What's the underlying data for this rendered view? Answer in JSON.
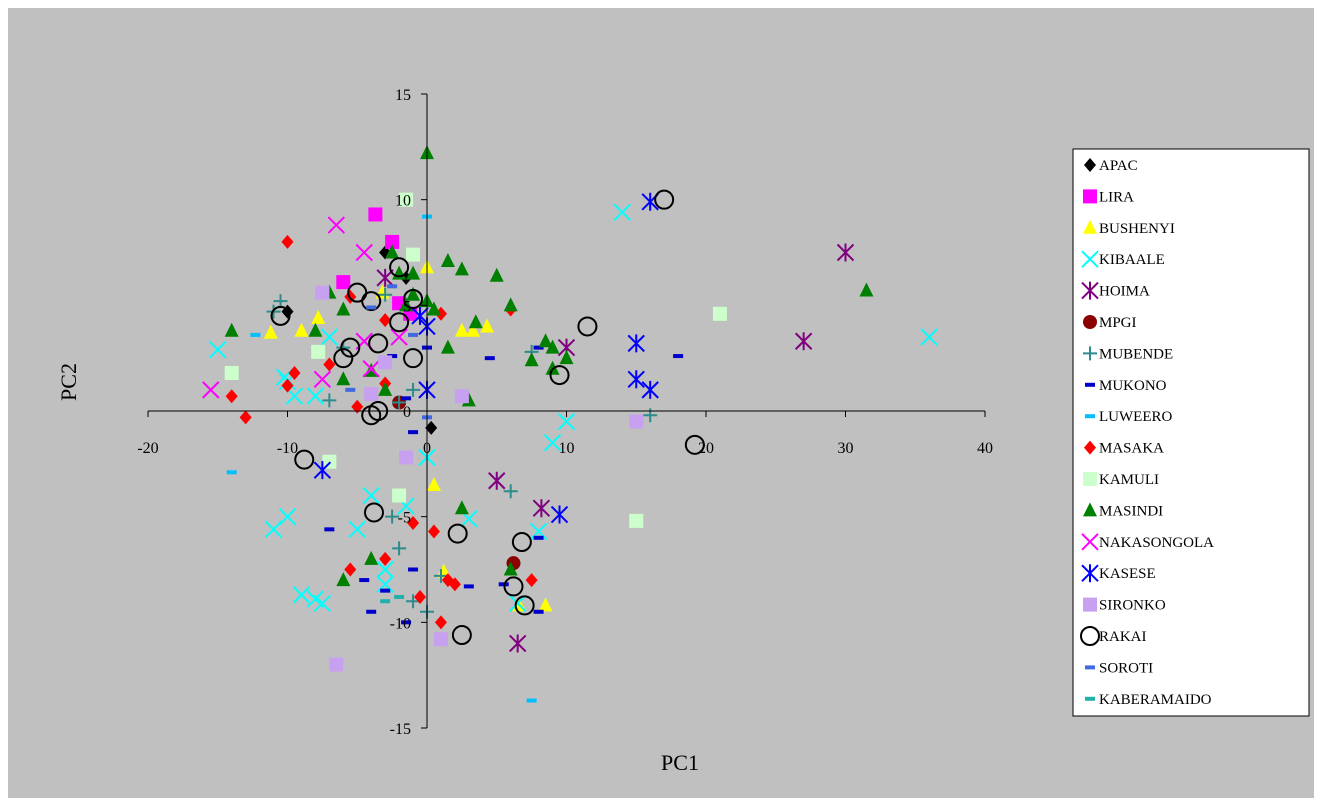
{
  "chart_data": {
    "type": "scatter",
    "title": "",
    "xlabel": "PC1",
    "ylabel": "PC2",
    "xlim": [
      -20,
      40
    ],
    "ylim": [
      -15,
      15
    ],
    "x_ticks": [
      -20,
      -10,
      0,
      10,
      20,
      30,
      40
    ],
    "y_ticks": [
      -15,
      -10,
      -5,
      0,
      5,
      10,
      15
    ],
    "grid": false,
    "legend_position": "right",
    "plot_background": "#c0c0c0",
    "series": [
      {
        "name": "APAC",
        "marker": "diamond",
        "color": "#000000",
        "points": [
          [
            -10,
            4.7
          ],
          [
            -3,
            7.5
          ],
          [
            -1.5,
            6.3
          ],
          [
            0.3,
            -0.8
          ]
        ]
      },
      {
        "name": "LIRA",
        "marker": "square",
        "color": "#ff00ff",
        "points": [
          [
            -3.7,
            9.3
          ],
          [
            -2.5,
            8
          ],
          [
            -6,
            6.1
          ],
          [
            -2,
            5.1
          ],
          [
            -1.2,
            4.6
          ]
        ]
      },
      {
        "name": "BUSHENYI",
        "marker": "triangle",
        "color": "#ffff00",
        "points": [
          [
            -11.2,
            3.7
          ],
          [
            -9,
            3.8
          ],
          [
            -7.8,
            4.4
          ],
          [
            0,
            6.8
          ],
          [
            2.5,
            3.8
          ],
          [
            3.3,
            3.8
          ],
          [
            4.3,
            4
          ],
          [
            -3.2,
            5.6
          ],
          [
            1.2,
            -7.6
          ],
          [
            6.6,
            -9.2
          ],
          [
            8.5,
            -9.2
          ],
          [
            0.5,
            -3.5
          ]
        ]
      },
      {
        "name": "KIBAALE",
        "marker": "x",
        "color": "#00ffff",
        "points": [
          [
            -15,
            2.9
          ],
          [
            -10.2,
            1.6
          ],
          [
            -9.5,
            0.7
          ],
          [
            -10,
            1.4
          ],
          [
            -8,
            0.7
          ],
          [
            -7,
            3.5
          ],
          [
            -11,
            -5.6
          ],
          [
            -10,
            -5
          ],
          [
            -9,
            -8.7
          ],
          [
            -8,
            -8.9
          ],
          [
            -7.5,
            -9.1
          ],
          [
            -4,
            -4
          ],
          [
            -5,
            -5.6
          ],
          [
            -3,
            -7.5
          ],
          [
            -3,
            -8.2
          ],
          [
            -1.5,
            -4.5
          ],
          [
            0,
            -2.2
          ],
          [
            3,
            -5.1
          ],
          [
            6.5,
            -9.1
          ],
          [
            8,
            -5.7
          ],
          [
            9,
            -1.5
          ],
          [
            10,
            -0.5
          ],
          [
            14,
            9.4
          ],
          [
            36,
            3.5
          ]
        ]
      },
      {
        "name": "HOIMA",
        "marker": "star",
        "color": "#800080",
        "points": [
          [
            -3,
            6.3
          ],
          [
            10,
            3
          ],
          [
            27,
            3.3
          ],
          [
            30,
            7.5
          ],
          [
            5,
            -3.3
          ],
          [
            8.2,
            -4.6
          ],
          [
            6.5,
            -11
          ]
        ]
      },
      {
        "name": "MPGI",
        "marker": "circle",
        "color": "#8b0000",
        "points": [
          [
            -2,
            0.4
          ],
          [
            6.2,
            -7.2
          ]
        ]
      },
      {
        "name": "MUBENDE",
        "marker": "plus",
        "color": "#2e8b8b",
        "points": [
          [
            -10.5,
            5.2
          ],
          [
            -11,
            4.7
          ],
          [
            -7,
            0.5
          ],
          [
            -6,
            3
          ],
          [
            -3,
            5.5
          ],
          [
            -2,
            0.4
          ],
          [
            -1,
            1
          ],
          [
            6,
            -3.8
          ],
          [
            7.5,
            2.8
          ],
          [
            16,
            -0.2
          ],
          [
            -2.5,
            -5
          ],
          [
            -2,
            -6.5
          ],
          [
            -1,
            -9
          ],
          [
            0,
            -9.5
          ],
          [
            1,
            -7.8
          ]
        ]
      },
      {
        "name": "MUKONO",
        "marker": "dash",
        "color": "#0000cd",
        "points": [
          [
            -2.5,
            2.6
          ],
          [
            0,
            3
          ],
          [
            4.5,
            2.5
          ],
          [
            8,
            3
          ],
          [
            18,
            2.6
          ],
          [
            -1,
            -1
          ],
          [
            -7,
            -5.6
          ],
          [
            -4.5,
            -8
          ],
          [
            -4,
            -9.5
          ],
          [
            -3,
            -8.5
          ],
          [
            -1,
            -7.5
          ],
          [
            -1.5,
            -10
          ],
          [
            3,
            -8.3
          ],
          [
            5.5,
            -8.2
          ],
          [
            8,
            -9.5
          ],
          [
            8,
            -6
          ],
          [
            -1.5,
            0.6
          ]
        ]
      },
      {
        "name": "LUWEERO",
        "marker": "dash",
        "color": "#00bfff",
        "points": [
          [
            -14,
            -2.9
          ],
          [
            -12.3,
            3.6
          ],
          [
            7.5,
            -13.7
          ],
          [
            0,
            9.2
          ]
        ]
      },
      {
        "name": "MASAKA",
        "marker": "diamond",
        "color": "#ff0000",
        "points": [
          [
            -10,
            8
          ],
          [
            -14,
            0.7
          ],
          [
            -13,
            -0.3
          ],
          [
            -10,
            1.2
          ],
          [
            -9.5,
            1.8
          ],
          [
            -7,
            2.2
          ],
          [
            -5.5,
            5.4
          ],
          [
            -5,
            0.2
          ],
          [
            -3,
            4.3
          ],
          [
            -3,
            1.3
          ],
          [
            1,
            4.6
          ],
          [
            6,
            4.8
          ],
          [
            -5.5,
            -7.5
          ],
          [
            -3,
            -7
          ],
          [
            -1,
            -5.3
          ],
          [
            0.5,
            -5.7
          ],
          [
            1.5,
            -8
          ],
          [
            2,
            -8.2
          ],
          [
            -0.5,
            -8.8
          ],
          [
            1,
            -10
          ],
          [
            7.5,
            -8
          ]
        ]
      },
      {
        "name": "KAMULI",
        "marker": "square",
        "color": "#ccffcc",
        "points": [
          [
            -14,
            1.8
          ],
          [
            -7.8,
            2.8
          ],
          [
            -1.5,
            10
          ],
          [
            -1,
            7.4
          ],
          [
            -7,
            -2.4
          ],
          [
            -2,
            -4
          ],
          [
            15,
            -5.2
          ],
          [
            21,
            4.6
          ]
        ]
      },
      {
        "name": "MASINDI",
        "marker": "triangle",
        "color": "#008000",
        "points": [
          [
            0,
            12.2
          ],
          [
            -14,
            3.8
          ],
          [
            -8,
            3.8
          ],
          [
            -7,
            5.6
          ],
          [
            -6,
            4.8
          ],
          [
            -4,
            1.9
          ],
          [
            -3,
            1
          ],
          [
            -2.5,
            7.5
          ],
          [
            -2,
            6.5
          ],
          [
            -1,
            6.5
          ],
          [
            -1,
            5.5
          ],
          [
            0,
            5.2
          ],
          [
            0.5,
            4.8
          ],
          [
            1.5,
            7.1
          ],
          [
            2.5,
            6.7
          ],
          [
            1.5,
            3
          ],
          [
            3.5,
            4.2
          ],
          [
            5,
            6.4
          ],
          [
            6,
            5
          ],
          [
            7.5,
            2.4
          ],
          [
            8.5,
            3.3
          ],
          [
            9,
            3
          ],
          [
            9,
            2
          ],
          [
            10,
            2.5
          ],
          [
            31.5,
            5.7
          ],
          [
            3,
            0.5
          ],
          [
            -6,
            1.5
          ],
          [
            -4,
            -7
          ],
          [
            2.5,
            -4.6
          ],
          [
            -6,
            -8
          ],
          [
            6,
            -7.5
          ],
          [
            -1.5,
            5
          ]
        ]
      },
      {
        "name": "NAKASONGOLA",
        "marker": "x",
        "color": "#ff00ff",
        "points": [
          [
            -15.5,
            1
          ],
          [
            -7.5,
            1.5
          ],
          [
            -6.5,
            8.8
          ],
          [
            -4.5,
            7.5
          ],
          [
            -4.5,
            3.3
          ],
          [
            -4,
            2
          ],
          [
            -2,
            3.5
          ]
        ]
      },
      {
        "name": "KASESE",
        "marker": "star",
        "color": "#0000ff",
        "points": [
          [
            16,
            9.9
          ],
          [
            -0.5,
            4.5
          ],
          [
            0,
            4
          ],
          [
            0,
            1
          ],
          [
            -7.5,
            -2.8
          ],
          [
            15,
            3.2
          ],
          [
            15,
            1.5
          ],
          [
            16,
            1
          ],
          [
            9.5,
            -4.9
          ]
        ]
      },
      {
        "name": "SIRONKO",
        "marker": "square",
        "color": "#c8a0f0",
        "points": [
          [
            -7.5,
            5.6
          ],
          [
            -3,
            2.3
          ],
          [
            -4,
            0.8
          ],
          [
            2.5,
            0.7
          ],
          [
            15,
            -0.5
          ],
          [
            -1.5,
            -2.2
          ],
          [
            -6.5,
            -12
          ],
          [
            1,
            -10.8
          ]
        ]
      },
      {
        "name": "RAKAI",
        "marker": "ring",
        "color": "#000000",
        "points": [
          [
            17,
            10
          ],
          [
            -10.5,
            4.5
          ],
          [
            -5,
            5.6
          ],
          [
            -4,
            5.2
          ],
          [
            -2,
            6.8
          ],
          [
            -1,
            5.3
          ],
          [
            -3.5,
            3.2
          ],
          [
            -5.5,
            3
          ],
          [
            -6,
            2.5
          ],
          [
            -2,
            4.2
          ],
          [
            -1,
            2.5
          ],
          [
            11.5,
            4
          ],
          [
            9.5,
            1.7
          ],
          [
            -4,
            -0.2
          ],
          [
            -3.5,
            0
          ],
          [
            -8.8,
            -2.3
          ],
          [
            -3.8,
            -4.8
          ],
          [
            2.2,
            -5.8
          ],
          [
            6.8,
            -6.2
          ],
          [
            6.2,
            -8.3
          ],
          [
            7,
            -9.2
          ],
          [
            2.5,
            -10.6
          ],
          [
            19.2,
            -1.6
          ]
        ]
      },
      {
        "name": "SOROTI",
        "marker": "dash",
        "color": "#4169e1",
        "points": [
          [
            -2.5,
            5.9
          ],
          [
            -4,
            4.9
          ],
          [
            -1,
            3.6
          ],
          [
            -5.5,
            1
          ],
          [
            0,
            -0.3
          ]
        ]
      },
      {
        "name": "KABERAMAIDO",
        "marker": "dash",
        "color": "#20b2aa",
        "points": [
          [
            -3,
            -9
          ],
          [
            -2,
            -8.8
          ]
        ]
      }
    ]
  }
}
